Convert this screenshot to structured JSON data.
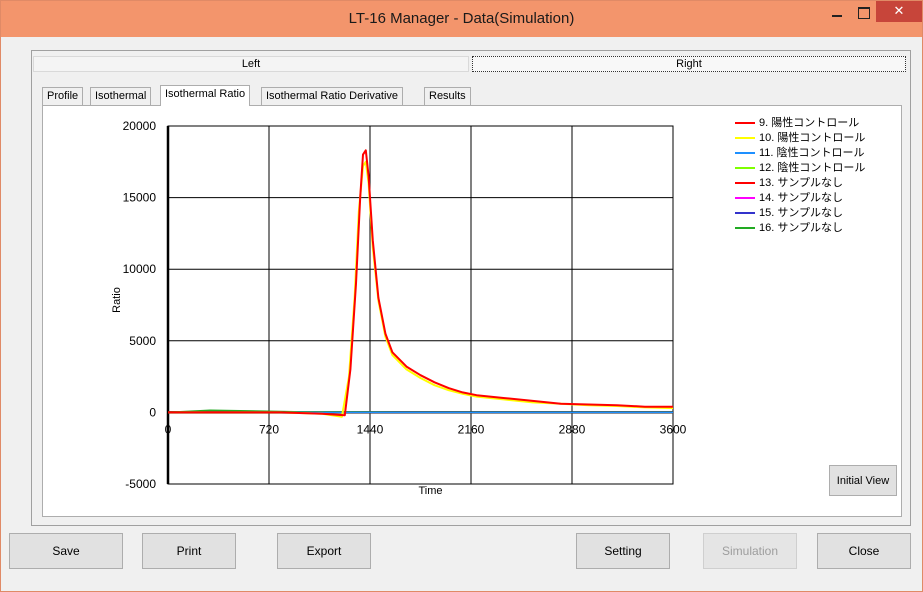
{
  "window": {
    "title": "LT-16 Manager - Data(Simulation)"
  },
  "side_tabs": {
    "left": "Left",
    "right": "Right"
  },
  "tabs": [
    {
      "label": "Profile"
    },
    {
      "label": "Isothermal"
    },
    {
      "label": "Isothermal Ratio"
    },
    {
      "label": "Isothermal Ratio Derivative"
    },
    {
      "label": "Results"
    }
  ],
  "active_tab": "Isothermal Ratio",
  "chart_data": {
    "type": "line",
    "title": "",
    "xlabel": "Time",
    "ylabel": "Ratio",
    "xlim": [
      0,
      3600
    ],
    "ylim": [
      -5000,
      20000
    ],
    "x_ticks": [
      0,
      720,
      1440,
      2160,
      2880,
      3600
    ],
    "y_ticks": [
      20000,
      15000,
      10000,
      5000,
      0,
      -5000
    ],
    "grid": true,
    "legend_position": "right",
    "series": [
      {
        "name": "9. 陽性コントロール",
        "color": "#ff0000",
        "x": [
          0,
          300,
          800,
          1100,
          1260,
          1300,
          1340,
          1370,
          1390,
          1410,
          1430,
          1460,
          1500,
          1550,
          1600,
          1700,
          1800,
          1900,
          2000,
          2100,
          2200,
          2400,
          2600,
          2800,
          3000,
          3200,
          3400,
          3600
        ],
        "y": [
          0,
          0,
          0,
          -100,
          -200,
          3000,
          9000,
          15000,
          18000,
          18300,
          16500,
          12000,
          8000,
          5500,
          4200,
          3200,
          2600,
          2100,
          1700,
          1400,
          1200,
          1000,
          800,
          600,
          550,
          500,
          400,
          400
        ]
      },
      {
        "name": "10. 陽性コントロール",
        "color": "#ffff00",
        "x": [
          0,
          300,
          800,
          1100,
          1240,
          1290,
          1330,
          1360,
          1390,
          1410,
          1430,
          1460,
          1500,
          1550,
          1600,
          1700,
          1800,
          1900,
          2000,
          2100,
          2200,
          2400,
          2600,
          2800,
          3000,
          3200,
          3400,
          3600
        ],
        "y": [
          0,
          0,
          0,
          -100,
          -300,
          2500,
          8000,
          14000,
          17200,
          17500,
          16000,
          11500,
          7800,
          5300,
          4000,
          3000,
          2400,
          1900,
          1550,
          1300,
          1100,
          900,
          700,
          600,
          500,
          450,
          350,
          300
        ]
      },
      {
        "name": "11. 陰性コントロール",
        "color": "#1e90ff",
        "x": [
          0,
          900,
          1800,
          2700,
          3600
        ],
        "y": [
          0,
          0,
          0,
          0,
          0
        ]
      },
      {
        "name": "12. 陰性コントロール",
        "color": "#7fff00",
        "x": [
          0,
          900,
          1800,
          2700,
          3600
        ],
        "y": [
          0,
          0,
          0,
          0,
          0
        ]
      },
      {
        "name": "13. サンプルなし",
        "color": "#ff0000",
        "x": [
          0,
          900,
          1800,
          2700,
          3600
        ],
        "y": [
          0,
          0,
          0,
          0,
          0
        ]
      },
      {
        "name": "14. サンプルなし",
        "color": "#ff00ff",
        "x": [
          0,
          900,
          1800,
          2700,
          3600
        ],
        "y": [
          0,
          0,
          0,
          0,
          0
        ]
      },
      {
        "name": "15. サンプルなし",
        "color": "#3333cc",
        "x": [
          0,
          900,
          1800,
          2700,
          3600
        ],
        "y": [
          0,
          0,
          0,
          0,
          0
        ]
      },
      {
        "name": "16. サンプルなし",
        "color": "#22aa22",
        "x": [
          0,
          300,
          900,
          1800,
          2700,
          3600
        ],
        "y": [
          0,
          150,
          50,
          0,
          0,
          0
        ]
      }
    ]
  },
  "buttons": {
    "initial_view": "Initial View",
    "save": "Save",
    "print": "Print",
    "export": "Export",
    "setting": "Setting",
    "simulation": "Simulation",
    "close": "Close"
  }
}
